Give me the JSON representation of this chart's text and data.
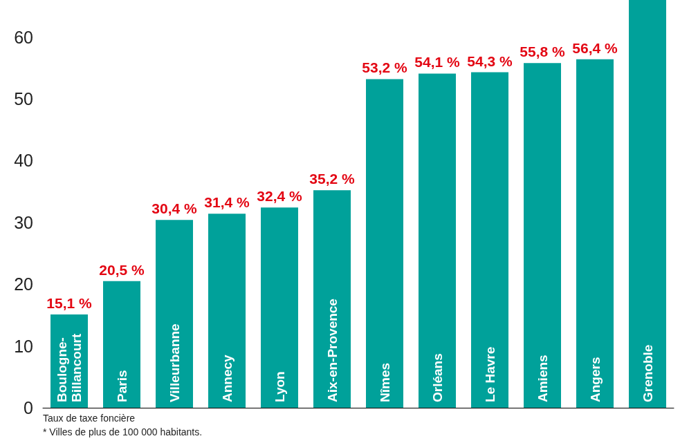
{
  "chart_data": {
    "type": "bar",
    "categories": [
      "Boulogne-Billancourt",
      "Paris",
      "Villeurbanne",
      "Annecy",
      "Lyon",
      "Aix-en-Provence",
      "Nîmes",
      "Orléans",
      "Le Havre",
      "Amiens",
      "Angers",
      "Grenoble"
    ],
    "values": [
      15.1,
      20.5,
      30.4,
      31.4,
      32.4,
      35.2,
      53.2,
      54.1,
      54.3,
      55.8,
      56.4,
      66
    ],
    "value_labels": [
      "15,1 %",
      "20,5 %",
      "30,4 %",
      "31,4 %",
      "32,4 %",
      "35,2 %",
      "53,2 %",
      "54,1 %",
      "54,3 %",
      "55,8 %",
      "56,4 %",
      null
    ],
    "color": "#00a19a",
    "ylim": [
      0,
      66
    ],
    "yticks": [
      0,
      10,
      20,
      30,
      40,
      50,
      60
    ],
    "grid": false,
    "annotations": [
      "Taux de taxe foncière",
      "* Villes de plus de 100 000 habitants."
    ]
  }
}
